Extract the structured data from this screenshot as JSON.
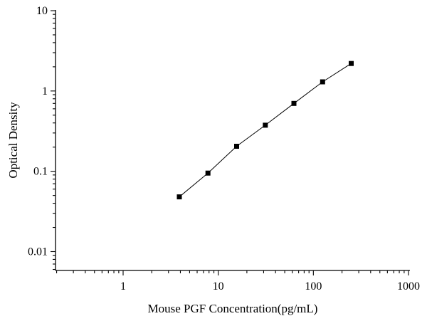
{
  "chart_data": {
    "type": "scatter",
    "title": "",
    "xlabel": "Mouse PGF Concentration(pg/mL)",
    "ylabel": "Optical Density",
    "x_scale": "log",
    "y_scale": "log",
    "xlim": [
      0.2,
      1000
    ],
    "ylim": [
      0.005,
      10
    ],
    "x_ticks": [
      "1",
      "10",
      "100",
      "1000"
    ],
    "y_ticks": [
      "0.01",
      "0.1",
      "1",
      "10"
    ],
    "grid": false,
    "legend": "none",
    "marker": "square",
    "marker_color": "#000000",
    "line_color": "#000000",
    "series": [
      {
        "x": [
          3.9,
          7.8,
          15.6,
          31.25,
          62.5,
          125,
          250
        ],
        "y": [
          0.048,
          0.095,
          0.205,
          0.375,
          0.7,
          1.3,
          2.2
        ],
        "fit_line": true
      }
    ]
  }
}
